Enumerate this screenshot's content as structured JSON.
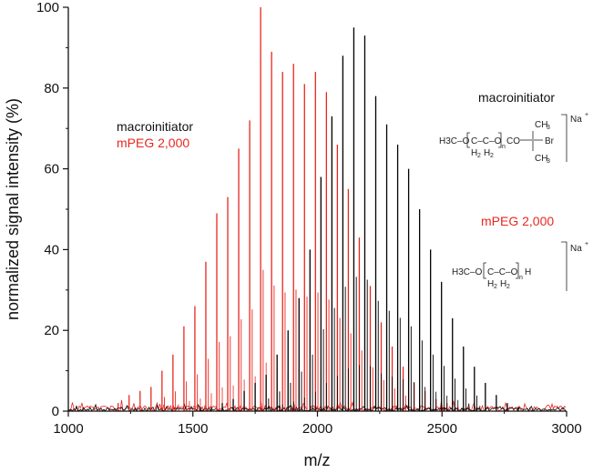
{
  "chart_data": {
    "type": "line",
    "xlabel": "m/z",
    "ylabel": "normalized signal intensity (%)",
    "xlim": [
      1000,
      3000
    ],
    "ylim": [
      0,
      100
    ],
    "x_ticks": [
      "1000",
      "1500",
      "2000",
      "2500",
      "3000"
    ],
    "y_ticks": [
      "0",
      "20",
      "40",
      "60",
      "80",
      "100"
    ],
    "legend": [
      "macroinitiator",
      "mPEG 2,000"
    ],
    "series": [
      {
        "name": "mPEG 2,000",
        "color": "#e8271f",
        "peaks": [
          {
            "x": 1200,
            "y": 2
          },
          {
            "x": 1244,
            "y": 4
          },
          {
            "x": 1288,
            "y": 5
          },
          {
            "x": 1332,
            "y": 6
          },
          {
            "x": 1376,
            "y": 10
          },
          {
            "x": 1420,
            "y": 14
          },
          {
            "x": 1464,
            "y": 21
          },
          {
            "x": 1508,
            "y": 26
          },
          {
            "x": 1552,
            "y": 37
          },
          {
            "x": 1596,
            "y": 49
          },
          {
            "x": 1640,
            "y": 53
          },
          {
            "x": 1684,
            "y": 65
          },
          {
            "x": 1728,
            "y": 72
          },
          {
            "x": 1772,
            "y": 100
          },
          {
            "x": 1816,
            "y": 89
          },
          {
            "x": 1860,
            "y": 84
          },
          {
            "x": 1904,
            "y": 86
          },
          {
            "x": 1948,
            "y": 81
          },
          {
            "x": 1992,
            "y": 84
          },
          {
            "x": 2036,
            "y": 79
          },
          {
            "x": 2080,
            "y": 66
          },
          {
            "x": 2124,
            "y": 55
          },
          {
            "x": 2168,
            "y": 43
          },
          {
            "x": 2212,
            "y": 31
          },
          {
            "x": 2256,
            "y": 22
          },
          {
            "x": 2300,
            "y": 16
          },
          {
            "x": 2344,
            "y": 11
          },
          {
            "x": 2388,
            "y": 7
          },
          {
            "x": 2432,
            "y": 5
          },
          {
            "x": 2476,
            "y": 3
          },
          {
            "x": 2520,
            "y": 2
          },
          {
            "x": 2564,
            "y": 1
          }
        ]
      },
      {
        "name": "macroinitiator",
        "color": "#000000",
        "peaks": [
          {
            "x": 1530,
            "y": 1
          },
          {
            "x": 1574,
            "y": 1
          },
          {
            "x": 1618,
            "y": 2
          },
          {
            "x": 1662,
            "y": 3
          },
          {
            "x": 1706,
            "y": 5
          },
          {
            "x": 1750,
            "y": 7
          },
          {
            "x": 1794,
            "y": 9
          },
          {
            "x": 1838,
            "y": 14
          },
          {
            "x": 1882,
            "y": 20
          },
          {
            "x": 1926,
            "y": 28
          },
          {
            "x": 1970,
            "y": 40
          },
          {
            "x": 2014,
            "y": 58
          },
          {
            "x": 2058,
            "y": 73
          },
          {
            "x": 2102,
            "y": 88
          },
          {
            "x": 2146,
            "y": 95
          },
          {
            "x": 2190,
            "y": 93
          },
          {
            "x": 2234,
            "y": 78
          },
          {
            "x": 2278,
            "y": 71
          },
          {
            "x": 2322,
            "y": 66
          },
          {
            "x": 2366,
            "y": 60
          },
          {
            "x": 2410,
            "y": 50
          },
          {
            "x": 2454,
            "y": 40
          },
          {
            "x": 2498,
            "y": 32
          },
          {
            "x": 2542,
            "y": 23
          },
          {
            "x": 2586,
            "y": 16
          },
          {
            "x": 2630,
            "y": 11
          },
          {
            "x": 2674,
            "y": 7
          },
          {
            "x": 2718,
            "y": 4
          },
          {
            "x": 2762,
            "y": 2
          },
          {
            "x": 2806,
            "y": 1
          }
        ]
      }
    ],
    "annotations": {
      "macroinitiator_label": "macroinitiator",
      "mpeg_label": "mPEG 2,000",
      "macroinitiator_structure": {
        "h3co": "H3C–O",
        "ch2ch2": "C–C–O",
        "h2a": "H",
        "sub2a": "2",
        "h2b": "H",
        "sub2b": "2",
        "n": "n",
        "co": "CO",
        "ch3_top": "CH",
        "ch3_top_sub": "3",
        "ch3_bottom": "CH",
        "ch3_bottom_sub": "3",
        "br": "Br",
        "na": "Na",
        "plus": "+"
      },
      "mpeg_structure": {
        "h3co": "H3C–O",
        "ch2ch2": "C–C–O",
        "h2a": "H",
        "sub2a": "2",
        "h2b": "H",
        "sub2b": "2",
        "n": "n",
        "h": "H",
        "na": "Na",
        "plus": "+"
      }
    }
  }
}
